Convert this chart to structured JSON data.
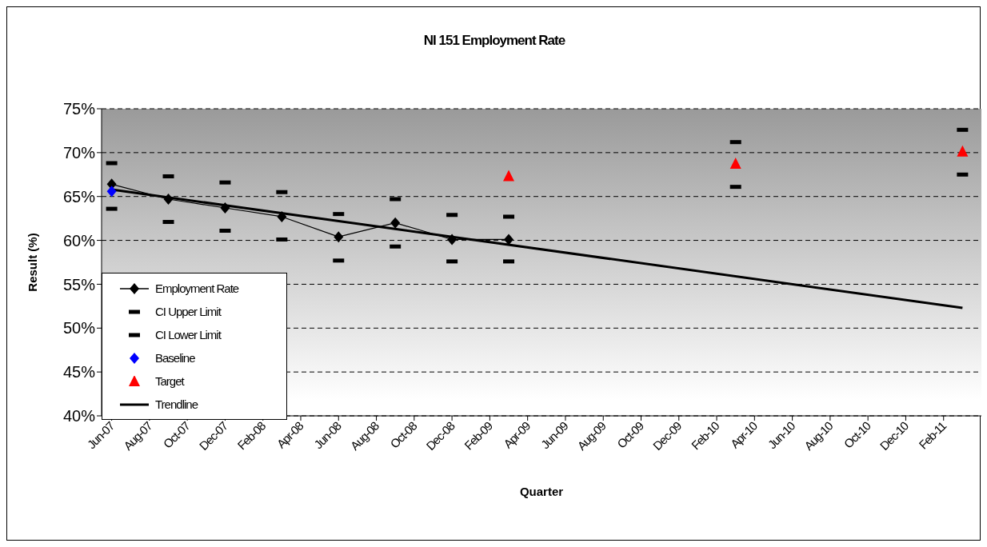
{
  "chart_data": {
    "type": "line",
    "title": "NI 151 Employment Rate",
    "xlabel": "Quarter",
    "ylabel": "Result (%)",
    "x": [
      "2007-06",
      "2007-09",
      "2007-12",
      "2008-03",
      "2008-06",
      "2008-09",
      "2008-12",
      "2009-03",
      "2010-03",
      "2011-03"
    ],
    "series": [
      {
        "name": "Employment Rate",
        "color": "#000000",
        "marker": "diamond",
        "values": [
          66.4,
          64.7,
          63.7,
          62.7,
          60.4,
          62.0,
          60.1,
          60.1,
          null,
          null
        ]
      },
      {
        "name": "CI Upper Limit",
        "type": "scatter",
        "color": "#000000",
        "marker": "square",
        "values": [
          68.8,
          67.3,
          66.6,
          65.5,
          63.0,
          64.7,
          62.9,
          62.7,
          71.2,
          72.6
        ]
      },
      {
        "name": "CI Lower Limit",
        "type": "scatter",
        "color": "#000000",
        "marker": "square",
        "values": [
          63.6,
          62.1,
          61.1,
          60.1,
          57.7,
          59.3,
          57.6,
          57.6,
          66.1,
          67.5
        ]
      },
      {
        "name": "Baseline",
        "type": "scatter",
        "color": "#0000ff",
        "marker": "diamond",
        "x": [
          "2007-06"
        ],
        "values": [
          65.6
        ]
      },
      {
        "name": "Target",
        "type": "scatter",
        "color": "#ff0000",
        "marker": "triangle",
        "x": [
          "2009-03",
          "2010-03",
          "2011-03"
        ],
        "values": [
          67.3,
          68.7,
          70.1
        ]
      },
      {
        "name": "Trendline",
        "color": "#000000",
        "marker": "none",
        "x": [
          "2007-06",
          "2011-03"
        ],
        "values": [
          65.8,
          52.3
        ]
      }
    ],
    "xlim": [
      "2007-05-15",
      "2011-04-01"
    ],
    "xticks": [
      {
        "value": "2007-06",
        "label": "Jun-07"
      },
      {
        "value": "2007-08",
        "label": "Aug-07"
      },
      {
        "value": "2007-10",
        "label": "Oct-07"
      },
      {
        "value": "2007-12",
        "label": "Dec-07"
      },
      {
        "value": "2008-02",
        "label": "Feb-08"
      },
      {
        "value": "2008-04",
        "label": "Apr-08"
      },
      {
        "value": "2008-06",
        "label": "Jun-08"
      },
      {
        "value": "2008-08",
        "label": "Aug-08"
      },
      {
        "value": "2008-10",
        "label": "Oct-08"
      },
      {
        "value": "2008-12",
        "label": "Dec-08"
      },
      {
        "value": "2009-02",
        "label": "Feb-09"
      },
      {
        "value": "2009-04",
        "label": "Apr-09"
      },
      {
        "value": "2009-06",
        "label": "Jun-09"
      },
      {
        "value": "2009-08",
        "label": "Aug-09"
      },
      {
        "value": "2009-10",
        "label": "Oct-09"
      },
      {
        "value": "2009-12",
        "label": "Dec-09"
      },
      {
        "value": "2010-02",
        "label": "Feb-10"
      },
      {
        "value": "2010-04",
        "label": "Apr-10"
      },
      {
        "value": "2010-06",
        "label": "Jun-10"
      },
      {
        "value": "2010-08",
        "label": "Aug-10"
      },
      {
        "value": "2010-10",
        "label": "Oct-10"
      },
      {
        "value": "2010-12",
        "label": "Dec-10"
      },
      {
        "value": "2011-02",
        "label": "Feb-11"
      }
    ],
    "ylim": [
      40,
      75
    ],
    "yticks": [
      {
        "value": 40,
        "label": "40%"
      },
      {
        "value": 45,
        "label": "45%"
      },
      {
        "value": 50,
        "label": "50%"
      },
      {
        "value": 55,
        "label": "55%"
      },
      {
        "value": 60,
        "label": "60%"
      },
      {
        "value": 65,
        "label": "65%"
      },
      {
        "value": 70,
        "label": "70%"
      },
      {
        "value": 75,
        "label": "75%"
      }
    ],
    "grid": "y",
    "legend": "bottom left",
    "line_style": "solid"
  }
}
